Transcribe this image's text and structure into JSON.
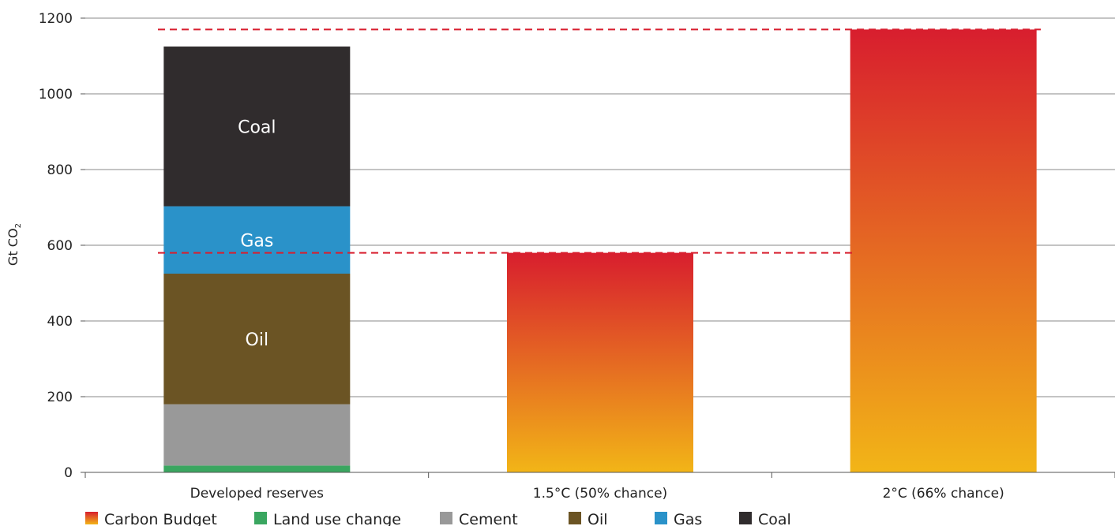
{
  "chart_data": {
    "type": "bar",
    "stacked": true,
    "ylabel": "Gt CO",
    "ylabel_subscript": "2",
    "ylim": [
      0,
      1200
    ],
    "yticks": [
      0,
      200,
      400,
      600,
      800,
      1000,
      1200
    ],
    "grid": true,
    "legend_position": "bottom-left",
    "categories": [
      "Developed reserves",
      "1.5°C (50% chance)",
      "2°C (66% chance)"
    ],
    "series": [
      {
        "name": "Land use change",
        "color": "#3aa660",
        "values": [
          18,
          0,
          0
        ]
      },
      {
        "name": "Cement",
        "color": "#999999",
        "values": [
          162,
          0,
          0
        ]
      },
      {
        "name": "Oil",
        "color": "#6b5424",
        "values": [
          345,
          0,
          0
        ],
        "segment_label": "Oil"
      },
      {
        "name": "Gas",
        "color": "#2a92c9",
        "values": [
          178,
          0,
          0
        ],
        "segment_label": "Gas"
      },
      {
        "name": "Coal",
        "color": "#302c2d",
        "values": [
          422,
          0,
          0
        ],
        "segment_label": "Coal"
      },
      {
        "name": "Carbon Budget",
        "gradient": [
          "#f2b517",
          "#d81e2e"
        ],
        "values": [
          0,
          580,
          1170
        ]
      }
    ],
    "reference_lines": [
      580,
      1170
    ],
    "reference_line_color": "#d81e2e",
    "legend_order": [
      "Carbon Budget",
      "Land use change",
      "Cement",
      "Oil",
      "Gas",
      "Coal"
    ]
  }
}
